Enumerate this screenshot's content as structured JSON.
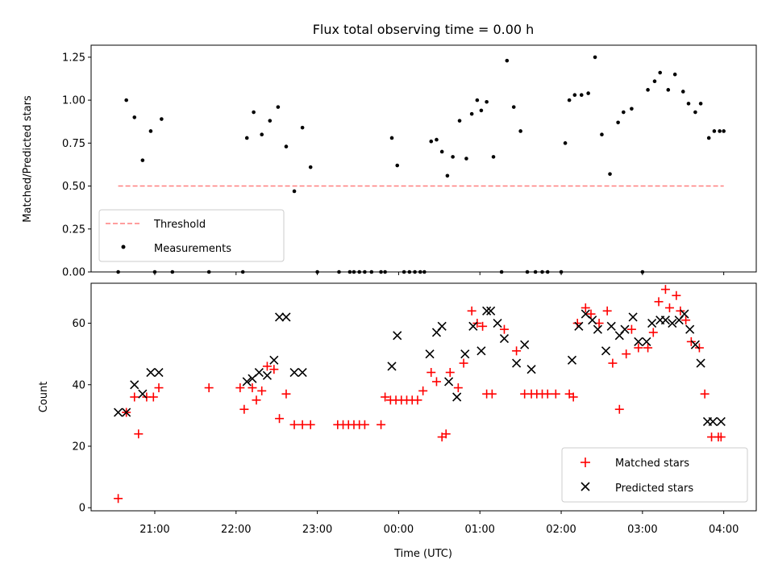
{
  "chart_data": [
    {
      "type": "scatter",
      "title": "Flux total observing time = 0.00 h",
      "xlabel": "",
      "ylabel": "Matched/Predicted stars",
      "xlim": [
        "20:13",
        "04:24"
      ],
      "ylim": [
        0,
        1.32
      ],
      "yticks": [
        "0.00",
        "0.25",
        "0.50",
        "0.75",
        "1.00",
        "1.25"
      ],
      "grid": false,
      "legend_position": "lower-left",
      "series": [
        {
          "name": "Threshold",
          "kind": "dashed-line",
          "color": "#ff7f7f",
          "x": [
            "20:33",
            "04:00"
          ],
          "y": [
            0.5,
            0.5
          ]
        },
        {
          "name": "Measurements",
          "kind": "points",
          "color": "#000000",
          "x": [
            "20:33",
            "20:39",
            "20:45",
            "20:51",
            "20:57",
            "21:00",
            "21:05",
            "21:13",
            "21:40",
            "22:05",
            "22:08",
            "22:13",
            "22:19",
            "22:25",
            "22:31",
            "22:37",
            "22:43",
            "22:49",
            "22:55",
            "23:00",
            "23:16",
            "23:24",
            "23:27",
            "23:31",
            "23:35",
            "23:40",
            "23:47",
            "23:50",
            "23:55",
            "23:59",
            "00:04",
            "00:08",
            "00:12",
            "00:16",
            "00:19",
            "00:24",
            "00:28",
            "00:32",
            "00:36",
            "00:40",
            "00:45",
            "00:50",
            "00:54",
            "00:58",
            "01:01",
            "01:05",
            "01:10",
            "01:16",
            "01:20",
            "01:25",
            "01:30",
            "01:35",
            "01:41",
            "01:46",
            "01:50",
            "02:00",
            "02:03",
            "02:06",
            "02:10",
            "02:15",
            "02:20",
            "02:25",
            "02:30",
            "02:36",
            "02:42",
            "02:46",
            "02:52",
            "03:00",
            "03:04",
            "03:09",
            "03:13",
            "03:19",
            "03:24",
            "03:30",
            "03:34",
            "03:39",
            "03:43",
            "03:49",
            "03:53",
            "03:57",
            "04:00"
          ],
          "y": [
            0,
            1.0,
            0.9,
            0.65,
            0.82,
            0,
            0.89,
            0,
            0,
            0,
            0.78,
            0.93,
            0.8,
            0.88,
            0.96,
            0.73,
            0.47,
            0.84,
            0.61,
            0,
            0,
            0,
            0,
            0,
            0,
            0,
            0,
            0,
            0.78,
            0.62,
            0,
            0,
            0,
            0,
            0,
            0.76,
            0.77,
            0.7,
            0.56,
            0.67,
            0.88,
            0.66,
            0.92,
            1.0,
            0.94,
            0.99,
            0.67,
            0,
            1.23,
            0.96,
            0.82,
            0,
            0,
            0,
            0,
            0,
            0.75,
            1.0,
            1.03,
            1.03,
            1.04,
            1.25,
            0.8,
            0.57,
            0.87,
            0.93,
            0.95,
            0,
            1.06,
            1.11,
            1.16,
            1.06,
            1.15,
            1.05,
            0.98,
            0.93,
            0.98,
            0.78,
            0.82,
            0.82,
            0.82
          ]
        }
      ]
    },
    {
      "type": "scatter",
      "title": "",
      "xlabel": "Time (UTC)",
      "ylabel": "Count",
      "xlim": [
        "20:13",
        "04:24"
      ],
      "ylim": [
        -1,
        73
      ],
      "yticks": [
        "0",
        "20",
        "40",
        "60"
      ],
      "xticks": [
        "21:00",
        "22:00",
        "23:00",
        "00:00",
        "01:00",
        "02:00",
        "03:00",
        "04:00"
      ],
      "grid": false,
      "legend_position": "lower-right",
      "series": [
        {
          "name": "Matched stars",
          "marker": "+",
          "color": "#ff0000",
          "x": [
            "20:33",
            "20:39",
            "20:45",
            "20:48",
            "20:54",
            "20:59",
            "21:03",
            "21:40",
            "22:03",
            "22:06",
            "22:12",
            "22:15",
            "22:19",
            "22:23",
            "22:28",
            "22:32",
            "22:37",
            "22:43",
            "22:49",
            "22:55",
            "23:15",
            "23:19",
            "23:23",
            "23:27",
            "23:31",
            "23:35",
            "23:47",
            "23:50",
            "23:54",
            "23:58",
            "00:02",
            "00:06",
            "00:10",
            "00:14",
            "00:18",
            "00:24",
            "00:28",
            "00:32",
            "00:35",
            "00:38",
            "00:44",
            "00:48",
            "00:54",
            "00:58",
            "01:02",
            "01:05",
            "01:09",
            "01:18",
            "01:27",
            "01:33",
            "01:38",
            "01:42",
            "01:46",
            "01:50",
            "01:56",
            "02:06",
            "02:09",
            "02:12",
            "02:18",
            "02:22",
            "02:28",
            "02:34",
            "02:38",
            "02:43",
            "02:48",
            "02:52",
            "02:57",
            "03:04",
            "03:08",
            "03:12",
            "03:17",
            "03:20",
            "03:25",
            "03:28",
            "03:32",
            "03:36",
            "03:42",
            "03:46",
            "03:51",
            "03:56",
            "03:58"
          ],
          "y": [
            3,
            31,
            36,
            24,
            36,
            36,
            39,
            39,
            39,
            32,
            39,
            35,
            38,
            46,
            45,
            29,
            37,
            27,
            27,
            27,
            27,
            27,
            27,
            27,
            27,
            27,
            27,
            36,
            35,
            35,
            35,
            35,
            35,
            35,
            38,
            44,
            41,
            23,
            24,
            44,
            39,
            47,
            64,
            60,
            59,
            37,
            37,
            58,
            51,
            37,
            37,
            37,
            37,
            37,
            37,
            37,
            36,
            60,
            65,
            63,
            60,
            64,
            47,
            32,
            50,
            58,
            52,
            52,
            57,
            67,
            71,
            65,
            69,
            64,
            61,
            54,
            52,
            37,
            23,
            23,
            23
          ]
        },
        {
          "name": "Predicted stars",
          "marker": "x",
          "color": "#000000",
          "x": [
            "20:33",
            "20:39",
            "20:45",
            "20:51",
            "20:57",
            "21:03",
            "22:08",
            "22:12",
            "22:17",
            "22:23",
            "22:28",
            "22:32",
            "22:37",
            "22:43",
            "22:49",
            "23:55",
            "23:59",
            "00:23",
            "00:28",
            "00:32",
            "00:37",
            "00:43",
            "00:49",
            "00:55",
            "01:01",
            "01:05",
            "01:08",
            "01:13",
            "01:18",
            "01:27",
            "01:33",
            "01:38",
            "02:08",
            "02:13",
            "02:18",
            "02:23",
            "02:27",
            "02:33",
            "02:37",
            "02:43",
            "02:47",
            "02:53",
            "02:57",
            "03:03",
            "03:07",
            "03:13",
            "03:17",
            "03:22",
            "03:27",
            "03:31",
            "03:35",
            "03:39",
            "03:43",
            "03:48",
            "03:52",
            "03:58"
          ],
          "y": [
            31,
            31,
            40,
            37,
            44,
            44,
            41,
            42,
            44,
            43,
            48,
            62,
            62,
            44,
            44,
            46,
            56,
            50,
            57,
            59,
            41,
            36,
            50,
            59,
            51,
            64,
            64,
            60,
            55,
            47,
            53,
            45,
            48,
            59,
            63,
            61,
            58,
            51,
            59,
            56,
            58,
            62,
            54,
            54,
            60,
            61,
            61,
            60,
            61,
            63,
            58,
            53,
            47,
            28,
            28,
            28
          ]
        }
      ]
    }
  ]
}
